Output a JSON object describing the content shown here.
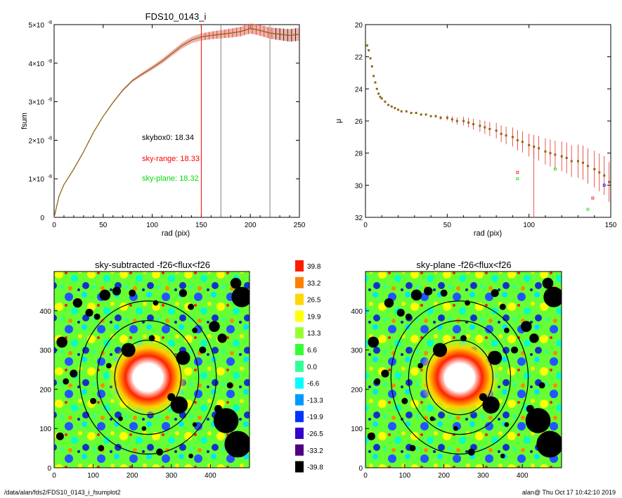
{
  "footer": {
    "left": "/data/alan/fds2/FDS10_0143_i_fsumplot2",
    "right": "alan@  Thu Oct 17 10:42:10 2019"
  },
  "colors": {
    "profile": "#8b6914",
    "error_bars": "#e8736a",
    "sky_range": "#ff0000",
    "sky_plane": "#00dd00",
    "skybox": "#000000"
  },
  "chart_data": [
    {
      "type": "line",
      "title": "FDS10_0143_i",
      "xlabel": "rad (pix)",
      "ylabel": "fsum",
      "xlim": [
        0,
        250
      ],
      "ylim": [
        0,
        5e-08
      ],
      "xticks": [
        "0",
        "50",
        "100",
        "150",
        "200",
        "250"
      ],
      "yticks": [
        {
          "value": 0,
          "mant": "0",
          "exp": ""
        },
        {
          "value": 1e-08,
          "mant": "1×10",
          "exp": "-8"
        },
        {
          "value": 2e-08,
          "mant": "2×10",
          "exp": "-8"
        },
        {
          "value": 3e-08,
          "mant": "3×10",
          "exp": "-8"
        },
        {
          "value": 4e-08,
          "mant": "4×10",
          "exp": "-8"
        },
        {
          "value": 5e-08,
          "mant": "5×10",
          "exp": "-8"
        }
      ],
      "series": {
        "x": [
          0,
          5,
          10,
          20,
          30,
          40,
          50,
          60,
          70,
          80,
          90,
          100,
          110,
          120,
          130,
          140,
          150,
          160,
          170,
          180,
          190,
          200,
          210,
          220,
          230,
          240,
          250
        ],
        "y": [
          0,
          5.5e-09,
          8.5e-09,
          1.25e-08,
          1.7e-08,
          2.2e-08,
          2.62e-08,
          2.98e-08,
          3.3e-08,
          3.55e-08,
          3.72e-08,
          3.88e-08,
          4.05e-08,
          4.25e-08,
          4.45e-08,
          4.6e-08,
          4.68e-08,
          4.72e-08,
          4.75e-08,
          4.78e-08,
          4.82e-08,
          4.9e-08,
          4.85e-08,
          4.78e-08,
          4.75e-08,
          4.72e-08,
          4.75e-08
        ]
      },
      "vlines": [
        {
          "x": 150,
          "color": "#ff0000"
        },
        {
          "x": 170,
          "color": "#808080"
        },
        {
          "x": 220,
          "color": "#808080"
        }
      ],
      "annotations": [
        {
          "text": "skybox0: 18.34",
          "color": "#000000"
        },
        {
          "text": "sky-range: 18.33",
          "color": "#ff0000"
        },
        {
          "text": "sky-plane: 18.32",
          "color": "#00dd00"
        }
      ]
    },
    {
      "type": "scatter",
      "title": "",
      "xlabel": "rad (pix)",
      "ylabel": "μ",
      "xlim": [
        0,
        150
      ],
      "ylim": [
        32,
        20
      ],
      "xticks": [
        "0",
        "50",
        "100",
        "150"
      ],
      "yticks": [
        "20",
        "22",
        "24",
        "26",
        "28",
        "30",
        "32"
      ],
      "points_x": [
        1,
        2,
        3,
        4,
        5,
        6,
        7,
        8,
        9,
        10,
        12,
        14,
        16,
        18,
        20,
        22,
        25,
        28,
        31,
        34,
        37,
        40,
        43,
        46,
        50,
        53,
        56,
        60,
        63,
        66,
        70,
        73,
        76,
        80,
        83,
        86,
        90,
        93,
        96,
        100,
        103,
        106,
        110,
        113,
        116,
        120,
        123,
        126,
        130,
        133,
        136,
        140,
        143,
        146,
        149
      ],
      "points_y": [
        21.3,
        21.6,
        22.1,
        22.6,
        23.2,
        23.6,
        24.0,
        24.3,
        24.5,
        24.6,
        24.8,
        25.0,
        25.1,
        25.2,
        25.3,
        25.4,
        25.4,
        25.5,
        25.5,
        25.6,
        25.6,
        25.7,
        25.7,
        25.8,
        25.8,
        25.9,
        26.0,
        26.0,
        26.1,
        26.2,
        26.3,
        26.4,
        26.5,
        26.6,
        26.8,
        26.9,
        27.0,
        27.2,
        27.3,
        27.5,
        27.6,
        27.7,
        27.9,
        28.0,
        28.1,
        28.2,
        28.3,
        28.5,
        28.5,
        28.6,
        28.8,
        29.0,
        29.2,
        29.4,
        29.8
      ],
      "outliers": [
        {
          "x": 93,
          "y": 29.2,
          "color": "#ff0000"
        },
        {
          "x": 93,
          "y": 29.6,
          "color": "#00dd00"
        },
        {
          "x": 116,
          "y": 29.0,
          "color": "#00dd00"
        },
        {
          "x": 136,
          "y": 31.5,
          "color": "#00dd00"
        },
        {
          "x": 139,
          "y": 30.8,
          "color": "#ff0000"
        },
        {
          "x": 146,
          "y": 30.0,
          "color": "#0000ff"
        }
      ]
    },
    {
      "type": "heatmap",
      "title": "sky-subtracted -f26<flux<f26",
      "xlim": [
        0,
        500
      ],
      "ylim": [
        0,
        500
      ],
      "xticks": [
        "0",
        "100",
        "200",
        "300",
        "400"
      ],
      "yticks": [
        "0",
        "100",
        "200",
        "300",
        "400"
      ],
      "center": [
        240,
        230
      ],
      "ellipses": [
        {
          "rx": 85,
          "ry": 95
        },
        {
          "rx": 130,
          "ry": 145
        },
        {
          "rx": 175,
          "ry": 195
        }
      ]
    },
    {
      "type": "heatmap",
      "title": "sky-plane -f26<flux<f26",
      "xlim": [
        0,
        500
      ],
      "ylim": [
        0,
        500
      ],
      "xticks": [
        "0",
        "100",
        "200",
        "300",
        "400"
      ],
      "yticks": [
        "0",
        "100",
        "200",
        "300",
        "400"
      ],
      "center": [
        240,
        230
      ],
      "ellipses": [
        {
          "rx": 85,
          "ry": 95
        },
        {
          "rx": 130,
          "ry": 145
        },
        {
          "rx": 175,
          "ry": 195
        }
      ]
    }
  ],
  "colorbar": {
    "levels": [
      {
        "label": "39.8",
        "color": "#ff1a00"
      },
      {
        "label": "33.2",
        "color": "#ff8000"
      },
      {
        "label": "26.5",
        "color": "#ffd700"
      },
      {
        "label": "19.9",
        "color": "#ffff00"
      },
      {
        "label": "13.3",
        "color": "#99ff33"
      },
      {
        "label": "6.6",
        "color": "#33ff33"
      },
      {
        "label": "0.0",
        "color": "#33ff99"
      },
      {
        "label": "-6.6",
        "color": "#00ffff"
      },
      {
        "label": "-13.3",
        "color": "#0099ff"
      },
      {
        "label": "-19.9",
        "color": "#0033ff"
      },
      {
        "label": "-26.5",
        "color": "#3300cc"
      },
      {
        "label": "-33.2",
        "color": "#4d0080"
      },
      {
        "label": "-39.8",
        "color": "#000000"
      }
    ]
  }
}
